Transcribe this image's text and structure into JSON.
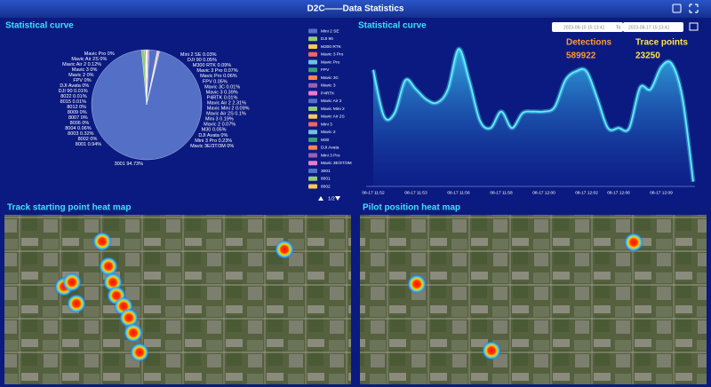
{
  "header": {
    "title": "D2C——Data Statistics"
  },
  "date_range": {
    "from": "2023-08-10 15:13:41",
    "separator": "To",
    "to": "2023-08-17 15:13:41"
  },
  "summary": [
    {
      "label": "Detections",
      "value": 589922,
      "color": "#ff9a2e"
    },
    {
      "label": "Trace points",
      "value": 23250,
      "color": "#ffe44d"
    }
  ],
  "chart_data": [
    {
      "type": "pie",
      "title": "Statistical curve",
      "categories": [
        "Mini 2 SE",
        "DJI 90",
        "M300 RTK",
        "Mavic 3 Pro",
        "Mavic Pro",
        "FPV",
        "Mavic 3C",
        "Mavic 3",
        "P4RTK",
        "Mavic Air 2",
        "Mavic Mini 2",
        "Mavic Air 2S",
        "Mini 3",
        "Mavic 2",
        "M30",
        "DJI Avata",
        "Mini 3 Pro",
        "Mavic 3E/3T/3M",
        "3001",
        "8001",
        "8002",
        "8003",
        "8004",
        "8006",
        "8007",
        "8009",
        "8012",
        "8015",
        "8022",
        "DJI 90",
        "DJI Avata",
        "FPV",
        "Mavic 2",
        "Mavic 3",
        "Mavic Air 2",
        "Mavic Air 2S",
        "Mavic Pro"
      ],
      "values": [
        0.03,
        0.05,
        0.09,
        0.07,
        0.06,
        0.05,
        0.01,
        0.39,
        0.01,
        2.31,
        0.09,
        0.1,
        0.19,
        0.07,
        0.05,
        0,
        0.23,
        0,
        94.73,
        0.94,
        0,
        0.32,
        0.06,
        0,
        0,
        0,
        0,
        0.01,
        0.01,
        0.01,
        0,
        0,
        0,
        0,
        0.12,
        0,
        0
      ],
      "value_labels": [
        "0.03%",
        "0.05%",
        "0.09%",
        "0.07%",
        "0.06%",
        "0.05%",
        "0.01%",
        "0.39%",
        "0.01%",
        "2.31%",
        "0.09%",
        "0.1%",
        "0.19%",
        "0.07%",
        "0.05%",
        "0%",
        "0.23%",
        "0%",
        "94.73%",
        "0.94%",
        "0%",
        "0.32%",
        "0.06%",
        "0%",
        "0%",
        "0%",
        "0%",
        "0.01%",
        "0.01%",
        "0.01%",
        "0%",
        "0%",
        "0%",
        "0%",
        "0.12%",
        "0%",
        "0%"
      ],
      "colors": [
        "#5470c6",
        "#91cc75",
        "#fac858",
        "#ee6666",
        "#73c0de",
        "#3ba272",
        "#fc8452",
        "#9a60b4",
        "#ea7ccc"
      ],
      "legend": {
        "items": [
          "Mini 2 SE",
          "DJI 90",
          "M300 RTK",
          "Mavic 3 Pro",
          "Mavic Pro",
          "FPV",
          "Mavic 3C",
          "Mavic 3",
          "P4RTK",
          "Mavic Air 2",
          "Mavic Mini 2",
          "Mavic Air 2S",
          "Mini 3",
          "Mavic 2",
          "M30",
          "DJI Avata",
          "Mini 3 Pro",
          "Mavic 3E/3T/3M",
          "3001",
          "8001",
          "8002"
        ],
        "page": "1/2"
      }
    },
    {
      "type": "line",
      "title": "Statistical curve",
      "categories": [
        "08-17 11:52",
        null,
        null,
        null,
        "08-17 11:53",
        null,
        null,
        null,
        "08-17 11:56",
        null,
        null,
        null,
        "08-17 11:58",
        null,
        null,
        null,
        "08-17 12:00",
        null,
        null,
        null,
        "08-17 12:02",
        null,
        null,
        "08-17 12:06",
        null,
        null,
        null,
        "08-17 12:09",
        null,
        null,
        null
      ],
      "values": [
        77,
        46,
        48,
        70,
        64,
        57,
        55,
        64,
        91,
        70,
        43,
        38,
        49,
        38,
        48,
        49,
        49,
        52,
        70,
        76,
        76,
        58,
        38,
        38,
        38,
        65,
        64,
        79,
        81,
        58,
        2
      ],
      "color": "#5ef0ff",
      "ylim": [
        0,
        100
      ]
    }
  ],
  "maps": [
    {
      "title": "Track starting point heat map"
    },
    {
      "title": "Pilot position heat map"
    }
  ]
}
